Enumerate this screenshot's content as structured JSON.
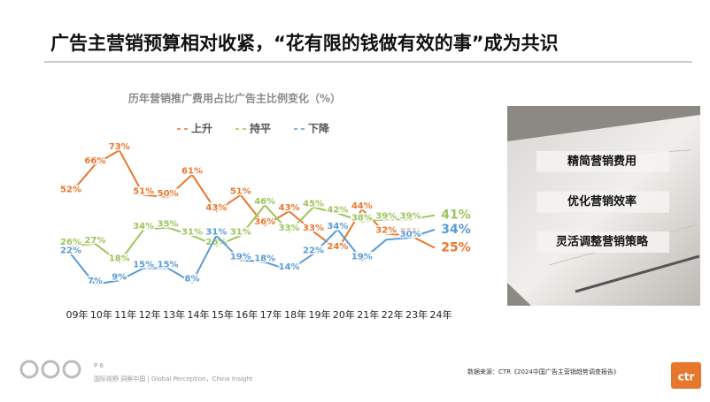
{
  "header": {
    "title": "广告主营销预算相对收紧，“花有限的钱做有效的事”成为共识"
  },
  "chart_data": {
    "type": "line",
    "title": "历年营销推广费用占比广告主比例变化（%）",
    "categories": [
      "09年",
      "10年",
      "11年",
      "12年",
      "13年",
      "14年",
      "15年",
      "16年",
      "17年",
      "18年",
      "19年",
      "20年",
      "21年",
      "22年",
      "23年",
      "24年"
    ],
    "series": [
      {
        "name": "上升",
        "color": "#e8772e",
        "values": [
          52,
          66,
          73,
          51,
          50,
          61,
          43,
          51,
          36,
          43,
          33,
          24,
          44,
          32,
          31,
          25
        ],
        "value_labels": [
          "52%",
          "66%",
          "73%",
          "51%",
          "50%",
          "61%",
          "43%",
          "51%",
          "36%",
          "43%",
          "33%",
          "24%",
          "44%",
          "32%",
          "31%",
          "25%"
        ]
      },
      {
        "name": "持平",
        "color": "#9dc45a",
        "values": [
          26,
          27,
          18,
          34,
          35,
          31,
          26,
          31,
          46,
          33,
          45,
          42,
          38,
          39,
          39,
          41
        ],
        "value_labels": [
          "26%",
          "27%",
          "18%",
          "34%",
          "35%",
          "31%",
          "26%",
          "31%",
          "46%",
          "33%",
          "45%",
          "42%",
          "38%",
          "39%",
          "39%",
          "41%"
        ]
      },
      {
        "name": "下降",
        "color": "#5b9bd5",
        "values": [
          22,
          7,
          9,
          15,
          15,
          8,
          31,
          19,
          18,
          14,
          22,
          34,
          19,
          29,
          30,
          34
        ],
        "value_labels": [
          "22%",
          "7%",
          "9%",
          "15%",
          "15%",
          "8%",
          "31%",
          "19%",
          "18%",
          "14%",
          "22%",
          "34%",
          "19%",
          null,
          "30%",
          "34%"
        ]
      }
    ]
  },
  "panel": {
    "items": [
      "精简营销费用",
      "优化营销效率",
      "灵活调整营销策略"
    ]
  },
  "footer": {
    "page": "P 6",
    "slogan": "国际视野  洞察中国 | Global Perception，China Insight",
    "source": "数据来源：CTR《2024中国广告主营销趋势调查报告》",
    "logo": "ctr"
  }
}
